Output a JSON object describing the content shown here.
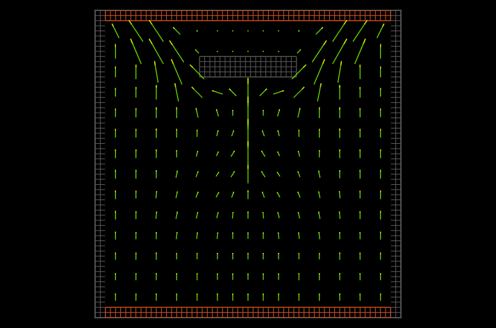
{
  "chart_data": {
    "type": "quiver",
    "xlim": [
      0,
      60
    ],
    "ylim": [
      0,
      60
    ],
    "tick_labels": false,
    "grid": false,
    "color": "#66dd00",
    "blocks": [
      {
        "x": [
          0,
          60
        ],
        "y": [
          0,
          60
        ],
        "color": "#5a5a5a",
        "grid": true
      },
      {
        "x": [
          2,
          58
        ],
        "y": [
          2,
          58
        ],
        "color": "#000000",
        "grid": false
      },
      {
        "x": [
          2,
          58
        ],
        "y": [
          58,
          60
        ],
        "color": "#d2521e",
        "grid": true
      },
      {
        "x": [
          2,
          58
        ],
        "y": [
          0,
          2
        ],
        "color": "#d2521e",
        "grid": true
      },
      {
        "x": [
          20.5,
          39.5
        ],
        "y": [
          47,
          51
        ],
        "color": "#5a5a5a",
        "grid": true
      }
    ],
    "x": [
      4,
      8,
      12,
      16,
      20,
      24,
      27,
      30,
      33,
      36,
      40,
      44,
      48,
      52,
      56
    ],
    "y": [
      56,
      52,
      48,
      44,
      40,
      36,
      32,
      28,
      24,
      20,
      16,
      12,
      8,
      4
    ],
    "u": [
      [
        -1,
        -2,
        -2,
        -1,
        0,
        0,
        0,
        0,
        0,
        0,
        0,
        1,
        2,
        2,
        1
      ],
      [
        0,
        -1.5,
        -2,
        -2,
        -0.5,
        0,
        0,
        0,
        0,
        0,
        0.5,
        2,
        2,
        1.5,
        0
      ],
      [
        0,
        0,
        -0.5,
        -1.5,
        -2,
        0,
        0,
        0,
        0,
        0,
        2,
        1.5,
        0.5,
        0,
        0
      ],
      [
        0,
        0,
        0,
        -0.5,
        -1.5,
        -1.5,
        -1,
        0,
        1,
        1.5,
        1.5,
        0.5,
        0,
        0,
        0
      ],
      [
        0,
        0,
        0,
        0,
        -0.3,
        -0.3,
        0,
        0,
        0,
        0.3,
        0.3,
        0,
        0,
        0,
        0
      ],
      [
        0,
        0,
        0,
        0,
        0,
        0.2,
        0.3,
        0,
        -0.3,
        -0.2,
        0,
        0,
        0,
        0,
        0
      ],
      [
        0,
        0,
        0,
        0,
        0.2,
        0.3,
        0.5,
        0,
        -0.5,
        -0.3,
        -0.2,
        0,
        0,
        0,
        0
      ],
      [
        0,
        0,
        0,
        0.2,
        0.3,
        0.4,
        0.5,
        0,
        -0.5,
        -0.4,
        -0.3,
        -0.2,
        0,
        0,
        0
      ],
      [
        0,
        0,
        0.1,
        0.2,
        0.3,
        0.4,
        0.3,
        0,
        -0.3,
        -0.4,
        -0.3,
        -0.2,
        -0.1,
        0,
        0
      ],
      [
        0,
        0,
        0.1,
        0.2,
        0.2,
        0.2,
        0.1,
        0,
        -0.1,
        -0.2,
        -0.2,
        -0.2,
        -0.1,
        0,
        0
      ],
      [
        0,
        0,
        0,
        0.1,
        0.1,
        0.1,
        0,
        0,
        0,
        -0.1,
        -0.1,
        -0.1,
        0,
        0,
        0
      ],
      [
        0,
        0,
        0,
        0,
        0,
        0,
        0,
        0,
        0,
        0,
        0,
        0,
        0,
        0,
        0
      ],
      [
        0,
        0,
        0,
        0,
        0,
        0,
        0,
        0,
        0,
        0,
        0,
        0,
        0,
        0,
        0
      ],
      [
        0,
        0,
        0,
        0,
        0,
        0,
        0,
        0,
        0,
        0,
        0,
        0,
        0,
        0,
        0
      ]
    ],
    "v": [
      [
        2,
        3,
        3,
        1,
        0.3,
        0.2,
        0.2,
        0.2,
        0.2,
        0.2,
        0.3,
        1,
        3,
        3,
        2
      ],
      [
        2,
        3.5,
        3.5,
        3,
        0.5,
        0.2,
        0.2,
        0.2,
        0.2,
        0.2,
        0.5,
        3,
        3.5,
        3.5,
        2
      ],
      [
        1.5,
        2,
        3,
        3.5,
        2,
        0,
        0,
        0,
        0,
        0,
        2,
        3.5,
        3,
        2,
        1.5
      ],
      [
        1.2,
        1.5,
        2,
        2.5,
        1.5,
        0.5,
        1,
        4,
        1,
        0.5,
        1.5,
        2.5,
        2,
        1.5,
        1.2
      ],
      [
        1.2,
        1.3,
        1.5,
        1.5,
        1.3,
        1,
        0.8,
        4.5,
        0.8,
        1,
        1.3,
        1.5,
        1.5,
        1.3,
        1.2
      ],
      [
        1.2,
        1.2,
        1.3,
        1.2,
        1,
        0.8,
        0.8,
        4,
        0.8,
        0.8,
        1,
        1.2,
        1.3,
        1.2,
        1.2
      ],
      [
        1.2,
        1.2,
        1.2,
        1,
        0.8,
        0.6,
        0.8,
        3.5,
        0.8,
        0.6,
        0.8,
        1,
        1.2,
        1.2,
        1.2
      ],
      [
        1.2,
        1.2,
        1.1,
        1,
        0.8,
        0.6,
        0.8,
        2.5,
        0.8,
        0.6,
        0.8,
        1,
        1.1,
        1.2,
        1.2
      ],
      [
        1.2,
        1.1,
        1,
        0.9,
        0.8,
        0.7,
        0.8,
        1.2,
        0.8,
        0.7,
        0.8,
        0.9,
        1,
        1.1,
        1.2
      ],
      [
        1.2,
        1.1,
        1,
        1,
        0.9,
        0.8,
        0.9,
        1,
        0.9,
        0.8,
        0.9,
        1,
        1,
        1.1,
        1.2
      ],
      [
        1.1,
        1,
        1,
        1,
        0.9,
        0.9,
        0.9,
        0.9,
        0.9,
        0.9,
        0.9,
        1,
        1,
        1,
        1.1
      ],
      [
        1,
        1,
        1,
        0.9,
        0.9,
        0.9,
        0.9,
        0.9,
        0.9,
        0.9,
        0.9,
        0.9,
        1,
        1,
        1
      ],
      [
        1,
        1,
        1,
        1,
        1,
        0.9,
        0.9,
        0.9,
        0.9,
        0.9,
        1,
        1,
        1,
        1,
        1
      ],
      [
        1,
        1,
        1,
        1,
        1,
        1,
        1,
        1,
        1,
        1,
        1,
        1,
        1,
        1,
        1
      ]
    ]
  }
}
